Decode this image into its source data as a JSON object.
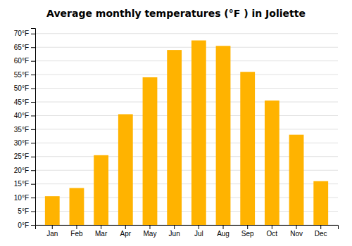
{
  "chart_data": {
    "type": "bar",
    "title": "Average monthly temperatures (°F ) in Joliette",
    "categories": [
      "Jan",
      "Feb",
      "Mar",
      "Apr",
      "May",
      "Jun",
      "Jul",
      "Aug",
      "Sep",
      "Oct",
      "Nov",
      "Dec"
    ],
    "values": [
      10.5,
      13.5,
      25.5,
      40.5,
      54,
      64,
      67.5,
      65.5,
      56,
      45.5,
      33,
      16
    ],
    "color": "#FFB300",
    "ylim": [
      0,
      72
    ],
    "yticks": [
      {
        "value": 0,
        "label": "0°F"
      },
      {
        "value": 5,
        "label": "5°F"
      },
      {
        "value": 10,
        "label": "10°F"
      },
      {
        "value": 15,
        "label": "15°F"
      },
      {
        "value": 20,
        "label": "20°F"
      },
      {
        "value": 25,
        "label": "25°F"
      },
      {
        "value": 30,
        "label": "30°F"
      },
      {
        "value": 35,
        "label": "35°F"
      },
      {
        "value": 40,
        "label": "40°F"
      },
      {
        "value": 45,
        "label": "45°F"
      },
      {
        "value": 50,
        "label": "50°F"
      },
      {
        "value": 55,
        "label": "55°F"
      },
      {
        "value": 60,
        "label": "60°F"
      },
      {
        "value": 65,
        "label": "65°F"
      },
      {
        "value": 70,
        "label": "70°F"
      }
    ],
    "grid": true
  }
}
